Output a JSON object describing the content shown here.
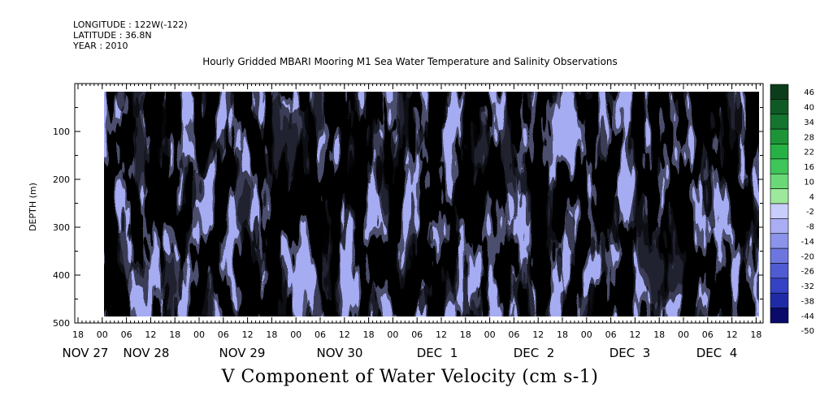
{
  "header": {
    "longitude": "LONGITUDE : 122W(-122)",
    "latitude": "LATITUDE : 36.8N",
    "year": "YEAR : 2010"
  },
  "chart_data": {
    "type": "heatmap",
    "title": "Hourly Gridded MBARI Mooring M1 Sea Water Temperature and Salinity Observations",
    "variable_label": "V Component of Water Velocity (cm s-1)",
    "ylabel": "DEPTH (m)",
    "ylim": [
      500,
      0
    ],
    "yticks": [
      100,
      200,
      300,
      400,
      500
    ],
    "x_hour_ticks": [
      "18",
      "00",
      "06",
      "12",
      "18",
      "00",
      "06",
      "12",
      "18",
      "00",
      "06",
      "12",
      "18",
      "00",
      "06",
      "12",
      "18",
      "00",
      "06",
      "12",
      "18",
      "00",
      "06",
      "12",
      "18",
      "00",
      "06",
      "12",
      "18"
    ],
    "x_day_labels": [
      "NOV 27",
      "NOV 28",
      "NOV 29",
      "NOV 30",
      "DEC  1",
      "DEC  2",
      "DEC  3",
      "DEC  4"
    ],
    "colorbar_levels": [
      46,
      40,
      34,
      28,
      22,
      16,
      10,
      4,
      -2,
      -8,
      -14,
      -20,
      -26,
      -32,
      -38,
      -44,
      -50
    ],
    "colors": {
      "strong_positive": "#0f5a24",
      "positive": "#22b14c",
      "weak_positive": "#8ee88e",
      "neutral": "#c2c6ff",
      "negative": "#9aa0ee",
      "strong_negative": "#3c48cc",
      "extreme_negative": "#0a0a6a"
    }
  }
}
